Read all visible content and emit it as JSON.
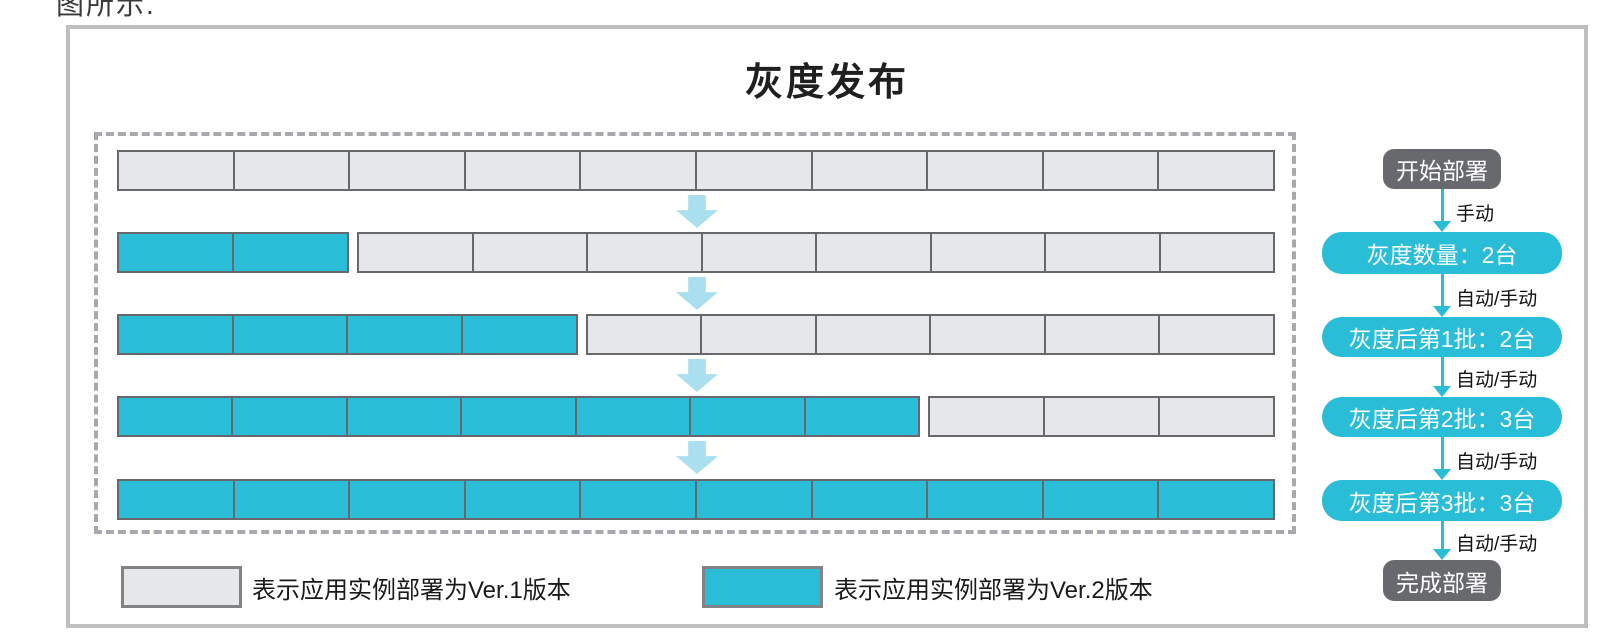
{
  "page": {
    "top_partial_text": "图所示.",
    "title": "灰度发布"
  },
  "colors": {
    "ver1_gray": "#e6e7e8",
    "ver2_cyan": "#29bdd8",
    "stage_arrow_light": "#aadff0",
    "flow_node_dark": "#67696c",
    "block_border": "#66686b",
    "dashed_border": "#a7a9ac",
    "frame_border": "#bcbec0"
  },
  "grid": {
    "rows": [
      {
        "groups": [
          {
            "version": "v1",
            "count": 10
          }
        ]
      },
      {
        "groups": [
          {
            "version": "v2",
            "count": 2
          },
          {
            "version": "v1",
            "count": 8
          }
        ]
      },
      {
        "groups": [
          {
            "version": "v2",
            "count": 4
          },
          {
            "version": "v1",
            "count": 6
          }
        ]
      },
      {
        "groups": [
          {
            "version": "v2",
            "count": 7
          },
          {
            "version": "v1",
            "count": 3
          }
        ]
      },
      {
        "groups": [
          {
            "version": "v2",
            "count": 10
          }
        ]
      }
    ]
  },
  "legend": {
    "items": [
      {
        "version": "v1",
        "label": "表示应用实例部署为Ver.1版本"
      },
      {
        "version": "v2",
        "label": "表示应用实例部署为Ver.2版本"
      }
    ]
  },
  "flow": {
    "nodes": [
      {
        "id": "start",
        "type": "dark",
        "label": "开始部署"
      },
      {
        "id": "batch0",
        "type": "cyan",
        "label": "灰度数量：2台"
      },
      {
        "id": "batch1",
        "type": "cyan",
        "label": "灰度后第1批：2台"
      },
      {
        "id": "batch2",
        "type": "cyan",
        "label": "灰度后第2批：3台"
      },
      {
        "id": "batch3",
        "type": "cyan",
        "label": "灰度后第3批：3台"
      },
      {
        "id": "end",
        "type": "dark",
        "label": "完成部署"
      }
    ],
    "edges": [
      "手动",
      "自动/手动",
      "自动/手动",
      "自动/手动",
      "自动/手动"
    ]
  }
}
